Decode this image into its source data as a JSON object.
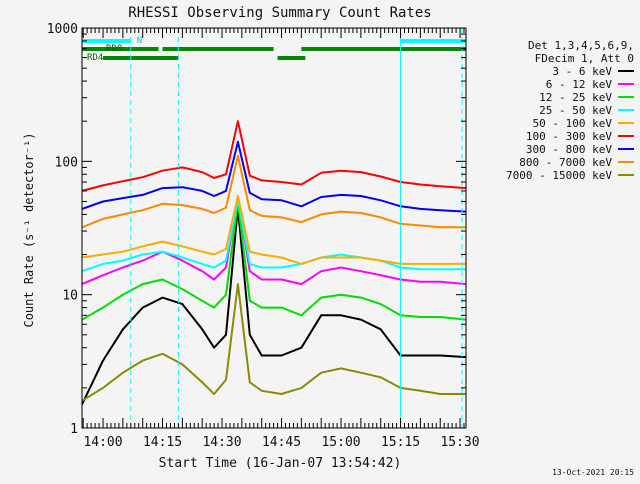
{
  "chart_data": {
    "type": "line",
    "title": "RHESSI Observing Summary Count Rates",
    "xlabel": "Start Time (16-Jan-07 13:54:42)",
    "ylabel": "Count Rate (s⁻¹ detector⁻¹)",
    "footer": "13-Oct-2021 20:15",
    "y_scale": "log",
    "ylim": [
      1,
      1000
    ],
    "xlim": [
      "13:54:42",
      "15:31:30"
    ],
    "x_ticks": [
      "14:00",
      "14:15",
      "14:30",
      "14:45",
      "15:00",
      "15:15",
      "15:30"
    ],
    "y_ticks": [
      "1",
      "10",
      "100",
      "1000"
    ],
    "legend_position": "right",
    "legend_header": [
      "Det 1,3,4,5,6,9,",
      "FDecim 1, Att 0"
    ],
    "series": [
      {
        "name": "3 - 6 keV",
        "color": "#000000",
        "x": [
          "13:54:42",
          "14:00",
          "14:05",
          "14:10",
          "14:15",
          "14:20",
          "14:25",
          "14:28",
          "14:31",
          "14:34",
          "14:37",
          "14:40",
          "14:45",
          "14:50",
          "14:55",
          "15:00",
          "15:05",
          "15:10",
          "15:15",
          "15:20",
          "15:25",
          "15:31:30"
        ],
        "values": [
          1.5,
          3.2,
          5.5,
          8,
          9.5,
          8.5,
          5.5,
          4,
          5,
          45,
          5,
          3.5,
          3.5,
          4,
          7,
          7,
          6.5,
          5.5,
          3.5,
          3.5,
          3.5,
          3.4
        ]
      },
      {
        "name": "6 - 12 keV",
        "color": "#ff00ff",
        "x": [
          "13:54:42",
          "14:00",
          "14:05",
          "14:10",
          "14:15",
          "14:20",
          "14:25",
          "14:28",
          "14:31",
          "14:34",
          "14:37",
          "14:40",
          "14:45",
          "14:50",
          "14:55",
          "15:00",
          "15:05",
          "15:10",
          "15:15",
          "15:20",
          "15:25",
          "15:31:30"
        ],
        "values": [
          12,
          14,
          16,
          18,
          21,
          18,
          15,
          13,
          16,
          55,
          15,
          13,
          13,
          12,
          15,
          16,
          15,
          14,
          13,
          12.5,
          12.5,
          12
        ]
      },
      {
        "name": "12 - 25 keV",
        "color": "#00dd00",
        "x": [
          "13:54:42",
          "14:00",
          "14:05",
          "14:10",
          "14:15",
          "14:20",
          "14:25",
          "14:28",
          "14:31",
          "14:34",
          "14:37",
          "14:40",
          "14:45",
          "14:50",
          "14:55",
          "15:00",
          "15:05",
          "15:10",
          "15:15",
          "15:20",
          "15:25",
          "15:31:30"
        ],
        "values": [
          6.5,
          8,
          10,
          12,
          13,
          11,
          9,
          8,
          10,
          50,
          9,
          8,
          8,
          7,
          9.5,
          10,
          9.5,
          8.5,
          7,
          6.8,
          6.8,
          6.5
        ]
      },
      {
        "name": "25 - 50 keV",
        "color": "#00ffff",
        "x": [
          "13:54:42",
          "14:00",
          "14:05",
          "14:10",
          "14:15",
          "14:20",
          "14:25",
          "14:28",
          "14:31",
          "14:34",
          "14:37",
          "14:40",
          "14:45",
          "14:50",
          "14:55",
          "15:00",
          "15:05",
          "15:10",
          "15:15",
          "15:20",
          "15:25",
          "15:31:30"
        ],
        "values": [
          15,
          17,
          18,
          20,
          21,
          19,
          17,
          16,
          18,
          52,
          17,
          16,
          16,
          17,
          19,
          20,
          19,
          18,
          16,
          15.5,
          15.5,
          15.5
        ]
      },
      {
        "name": "50 - 100 keV",
        "color": "#ffaa00",
        "x": [
          "13:54:42",
          "14:00",
          "14:05",
          "14:10",
          "14:15",
          "14:20",
          "14:25",
          "14:28",
          "14:31",
          "14:34",
          "14:37",
          "14:40",
          "14:45",
          "14:50",
          "14:55",
          "15:00",
          "15:05",
          "15:10",
          "15:15",
          "15:20",
          "15:25",
          "15:31:30"
        ],
        "values": [
          19,
          20,
          21,
          23,
          25,
          23,
          21,
          20,
          22,
          55,
          21,
          20,
          19,
          17,
          19,
          19,
          19,
          18,
          17,
          17,
          17,
          17
        ]
      },
      {
        "name": "100 - 300 keV",
        "color": "#ff0000",
        "x": [
          "13:54:42",
          "14:00",
          "14:05",
          "14:10",
          "14:15",
          "14:20",
          "14:25",
          "14:28",
          "14:31",
          "14:34",
          "14:37",
          "14:40",
          "14:45",
          "14:50",
          "14:55",
          "15:00",
          "15:05",
          "15:10",
          "15:15",
          "15:20",
          "15:25",
          "15:31:30"
        ],
        "values": [
          60,
          66,
          71,
          76,
          85,
          90,
          83,
          75,
          80,
          200,
          78,
          72,
          70,
          67,
          82,
          85,
          83,
          77,
          70,
          67,
          65,
          63
        ]
      },
      {
        "name": "300 - 800 keV",
        "color": "#0000ff",
        "x": [
          "13:54:42",
          "14:00",
          "14:05",
          "14:10",
          "14:15",
          "14:20",
          "14:25",
          "14:28",
          "14:31",
          "14:34",
          "14:37",
          "14:40",
          "14:45",
          "14:50",
          "14:55",
          "15:00",
          "15:05",
          "15:10",
          "15:15",
          "15:20",
          "15:25",
          "15:31:30"
        ],
        "values": [
          44,
          50,
          53,
          56,
          63,
          64,
          60,
          55,
          60,
          140,
          58,
          52,
          51,
          46,
          54,
          56,
          55,
          51,
          46,
          44,
          43,
          42
        ]
      },
      {
        "name": "800 - 7000 keV",
        "color": "#ff8800",
        "x": [
          "13:54:42",
          "14:00",
          "14:05",
          "14:10",
          "14:15",
          "14:20",
          "14:25",
          "14:28",
          "14:31",
          "14:34",
          "14:37",
          "14:40",
          "14:45",
          "14:50",
          "14:55",
          "15:00",
          "15:05",
          "15:10",
          "15:15",
          "15:20",
          "15:25",
          "15:31:30"
        ],
        "values": [
          32,
          37,
          40,
          43,
          48,
          47,
          44,
          41,
          45,
          110,
          43,
          39,
          38,
          35,
          40,
          42,
          41,
          38,
          34,
          33,
          32,
          32
        ]
      },
      {
        "name": "7000 - 15000 keV",
        "color": "#8b8b00",
        "x": [
          "13:54:42",
          "14:00",
          "14:05",
          "14:10",
          "14:15",
          "14:20",
          "14:25",
          "14:28",
          "14:31",
          "14:34",
          "14:37",
          "14:40",
          "14:45",
          "14:50",
          "14:55",
          "15:00",
          "15:05",
          "15:10",
          "15:15",
          "15:20",
          "15:25",
          "15:31:30"
        ],
        "values": [
          1.6,
          2.0,
          2.6,
          3.2,
          3.6,
          3.0,
          2.2,
          1.8,
          2.3,
          12,
          2.2,
          1.9,
          1.8,
          2.0,
          2.6,
          2.8,
          2.6,
          2.4,
          2.0,
          1.9,
          1.8,
          1.8
        ]
      }
    ],
    "attenuator_bars": [
      {
        "label": "N",
        "color": "#00ffff",
        "segments": [
          [
            "13:54:42",
            "14:07"
          ],
          [
            "15:15",
            "15:31:30"
          ]
        ]
      },
      {
        "label": "RD0",
        "color": "#008800",
        "segments": [
          [
            "13:54:42",
            "14:14"
          ],
          [
            "14:15",
            "14:43"
          ],
          [
            "14:50",
            "15:31:30"
          ]
        ]
      },
      {
        "label": "RD4",
        "color": "#008800",
        "segments": [
          [
            "14:00",
            "14:19"
          ],
          [
            "14:44",
            "14:51"
          ]
        ]
      }
    ],
    "vertical_markers": [
      {
        "time": "14:07",
        "style": "dashed",
        "color": "#00ffff"
      },
      {
        "time": "14:19",
        "style": "dashed",
        "color": "#00ffff"
      },
      {
        "time": "15:15",
        "style": "solid",
        "color": "#00ffff"
      },
      {
        "time": "15:30:30",
        "style": "dashed",
        "color": "#00ffff"
      }
    ]
  }
}
